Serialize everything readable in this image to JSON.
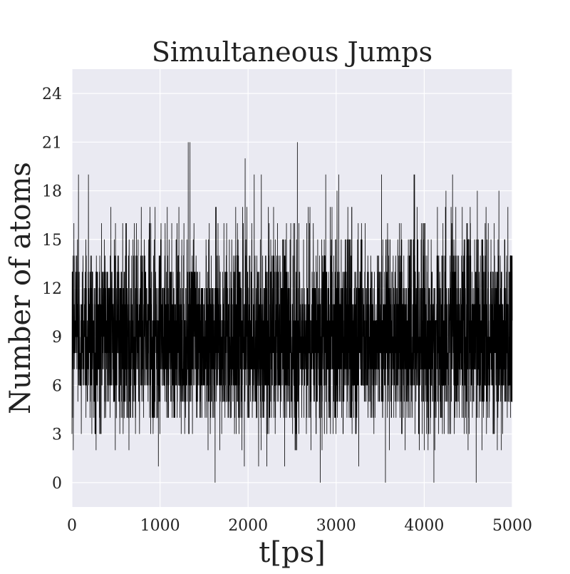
{
  "chart_data": {
    "type": "line",
    "title": "Simultaneous Jumps",
    "xlabel": "t[ps]",
    "ylabel": "Number of atoms",
    "xlim": [
      0,
      5000
    ],
    "ylim": [
      -1.5,
      25.5
    ],
    "xticks": [
      0,
      1000,
      2000,
      3000,
      4000,
      5000
    ],
    "yticks": [
      0,
      3,
      6,
      9,
      12,
      15,
      18,
      21,
      24
    ],
    "grid": true,
    "background": "#eaeaf2",
    "grid_color": "#ffffff",
    "line_color": "#000000",
    "series": [
      {
        "description": "fluctuating count of simultaneously jumping atoms per timestep, mostly between 4 and 14, mean about 9",
        "mean": 9,
        "typical_range": [
          4,
          14
        ],
        "max": 21,
        "min": 0,
        "n_points": 5000,
        "extremes": [
          {
            "x": 1320,
            "y": 21
          },
          {
            "x": 1340,
            "y": 21
          },
          {
            "x": 2560,
            "y": 21
          },
          {
            "x": 1625,
            "y": 0
          },
          {
            "x": 2820,
            "y": 0
          },
          {
            "x": 3560,
            "y": 0
          },
          {
            "x": 4110,
            "y": 0
          },
          {
            "x": 4590,
            "y": 0
          }
        ]
      }
    ]
  }
}
